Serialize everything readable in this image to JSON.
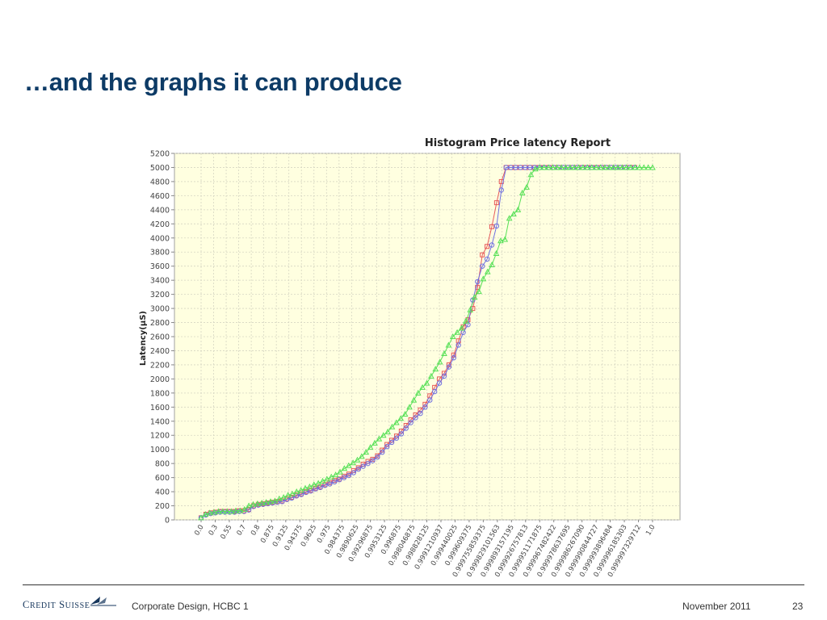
{
  "slide": {
    "title": "…and the graphs it can produce"
  },
  "footer": {
    "logo": "Credit Suisse",
    "left_text": "Corporate Design, HCBC 1",
    "date": "November 2011",
    "page_number": "23"
  },
  "chart_data": {
    "type": "line",
    "title": "Histogram Price latency Report",
    "ylabel": "Latency(µS)",
    "xlabel": "",
    "ylim": [
      0,
      5200
    ],
    "yticks": [
      0,
      200,
      400,
      600,
      800,
      1000,
      1200,
      1400,
      1600,
      1800,
      2000,
      2200,
      2400,
      2600,
      2800,
      3000,
      3200,
      3400,
      3600,
      3800,
      4000,
      4200,
      4400,
      4600,
      4800,
      5000,
      5200
    ],
    "x_tick_labels": [
      "0.0",
      "0.3",
      "0.55",
      "0.7",
      "0.8",
      "0.875",
      "0.9125",
      "0.94375",
      "0.9625",
      "0.975",
      "0.984375",
      "0.9890625",
      "0.99296875",
      "0.9953125",
      "0.996875",
      "0.998046875",
      "0.998828125",
      "0.9991210937",
      "0.999440025",
      "0.999609375",
      "0.999755859375",
      "0.999829101563",
      "0.999893157195",
      "0.999926757813",
      "0.999951171875",
      "0.999967482422",
      "0.999978637695",
      "0.999986267090",
      "0.999990844727",
      "0.999993896484",
      "0.999996185303",
      "0.999997329712",
      "1.0"
    ],
    "grid": true,
    "legend": "none",
    "background": "#ffffe0",
    "series": [
      {
        "color": "#e85a5a",
        "marker": "square",
        "values": [
          30,
          80,
          100,
          110,
          120,
          120,
          120,
          120,
          130,
          130,
          150,
          200,
          220,
          230,
          240,
          250,
          260,
          270,
          300,
          320,
          350,
          370,
          400,
          420,
          450,
          470,
          500,
          530,
          560,
          580,
          620,
          650,
          700,
          740,
          790,
          830,
          860,
          910,
          990,
          1070,
          1130,
          1190,
          1260,
          1340,
          1420,
          1490,
          1560,
          1640,
          1760,
          1880,
          2000,
          2080,
          2200,
          2340,
          2540,
          2740,
          2840,
          3000,
          3300,
          3760,
          3880,
          4160,
          4500,
          4800,
          5000,
          5000,
          5000,
          5000,
          5000,
          5000,
          5000,
          5000,
          5000,
          5000,
          5000,
          5000,
          5000,
          5000,
          5000,
          5000,
          5000,
          5000,
          5000,
          5000,
          5000,
          5000,
          5000,
          5000,
          5000,
          5000,
          5000,
          5000
        ]
      },
      {
        "color": "#6f6fe0",
        "marker": "circle",
        "values": [
          30,
          70,
          90,
          100,
          110,
          110,
          110,
          110,
          120,
          120,
          140,
          190,
          210,
          220,
          230,
          240,
          250,
          260,
          290,
          310,
          340,
          360,
          390,
          410,
          440,
          460,
          490,
          510,
          540,
          570,
          600,
          630,
          670,
          720,
          760,
          800,
          840,
          890,
          960,
          1040,
          1100,
          1160,
          1220,
          1300,
          1380,
          1450,
          1510,
          1600,
          1700,
          1820,
          1940,
          2040,
          2170,
          2300,
          2480,
          2660,
          2770,
          3120,
          3380,
          3600,
          3700,
          3900,
          4170,
          4680,
          5000,
          5000,
          5000,
          5000,
          5000,
          5000,
          5000,
          5000,
          5000,
          5000,
          5000,
          5000,
          5000,
          5000,
          5000,
          5000,
          5000,
          5000,
          5000,
          5000,
          5000,
          5000,
          5000,
          5000,
          5000,
          5000,
          5000,
          5000
        ]
      },
      {
        "color": "#57e057",
        "marker": "triangle",
        "values": [
          30,
          80,
          100,
          110,
          120,
          120,
          120,
          120,
          130,
          130,
          150,
          200,
          220,
          230,
          240,
          250,
          260,
          270,
          300,
          320,
          350,
          370,
          400,
          420,
          450,
          470,
          500,
          520,
          550,
          580,
          610,
          640,
          680,
          730,
          770,
          810,
          850,
          900,
          960,
          1030,
          1090,
          1150,
          1200,
          1250,
          1320,
          1380,
          1440,
          1500,
          1600,
          1700,
          1800,
          1880,
          1940,
          2040,
          2140,
          2240,
          2360,
          2480,
          2600,
          2660,
          2720,
          2820,
          2980,
          3160,
          3240,
          3420,
          3520,
          3620,
          3780,
          3960,
          3980,
          4280,
          4340,
          4400,
          4640,
          4720,
          4900,
          4980,
          5000,
          5000,
          5000,
          5000,
          5000,
          5000,
          5000,
          5000,
          5000,
          5000,
          5000,
          5000,
          5000,
          5000,
          5000,
          5000,
          5000,
          5000,
          5000,
          5000,
          5000,
          5000,
          5000,
          5000,
          5000,
          5000,
          5000
        ]
      }
    ]
  }
}
